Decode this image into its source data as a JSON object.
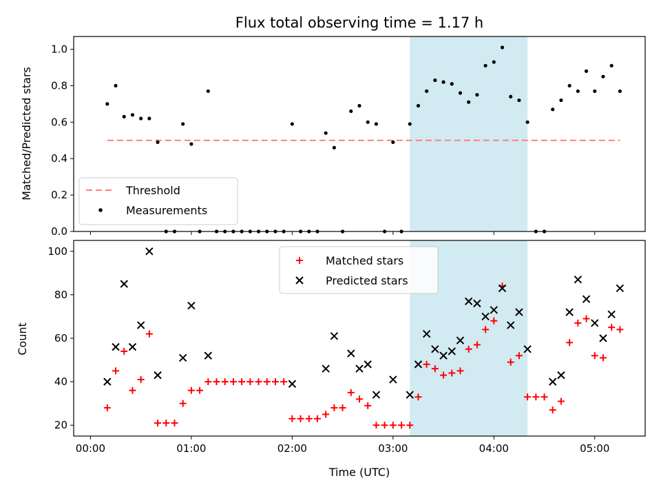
{
  "chart_data": [
    {
      "type": "scatter",
      "title": "Flux total observing time = 1.17 h",
      "ylabel": "Matched/Predicted stars",
      "xlabel": "",
      "x_unit": "minutes after 00:00 UTC",
      "xlim": [
        -10,
        330
      ],
      "ylim": [
        0,
        1.07
      ],
      "yticks": [
        "0.0",
        "0.2",
        "0.4",
        "0.6",
        "0.8",
        "1.0"
      ],
      "highlight_span": [
        190,
        260
      ],
      "threshold": {
        "name": "Threshold",
        "value": 0.5,
        "x_range": [
          10,
          315
        ],
        "color": "#ff7f7f"
      },
      "legend": {
        "position": "lower-left",
        "entries": [
          "Threshold",
          "Measurements"
        ]
      },
      "series": [
        {
          "name": "Measurements",
          "marker": "dot",
          "color": "#000000",
          "points": [
            [
              10,
              0.7
            ],
            [
              15,
              0.8
            ],
            [
              20,
              0.63
            ],
            [
              25,
              0.64
            ],
            [
              30,
              0.62
            ],
            [
              35,
              0.62
            ],
            [
              40,
              0.49
            ],
            [
              45,
              0.0
            ],
            [
              50,
              0.0
            ],
            [
              55,
              0.59
            ],
            [
              60,
              0.48
            ],
            [
              65,
              0.0
            ],
            [
              70,
              0.77
            ],
            [
              75,
              0.0
            ],
            [
              80,
              0.0
            ],
            [
              85,
              0.0
            ],
            [
              90,
              0.0
            ],
            [
              95,
              0.0
            ],
            [
              100,
              0.0
            ],
            [
              105,
              0.0
            ],
            [
              110,
              0.0
            ],
            [
              115,
              0.0
            ],
            [
              120,
              0.59
            ],
            [
              125,
              0.0
            ],
            [
              130,
              0.0
            ],
            [
              135,
              0.0
            ],
            [
              140,
              0.54
            ],
            [
              145,
              0.46
            ],
            [
              150,
              0.0
            ],
            [
              155,
              0.66
            ],
            [
              160,
              0.69
            ],
            [
              165,
              0.6
            ],
            [
              170,
              0.59
            ],
            [
              175,
              0.0
            ],
            [
              180,
              0.49
            ],
            [
              185,
              0.0
            ],
            [
              190,
              0.59
            ],
            [
              195,
              0.69
            ],
            [
              200,
              0.77
            ],
            [
              205,
              0.83
            ],
            [
              210,
              0.82
            ],
            [
              215,
              0.81
            ],
            [
              220,
              0.76
            ],
            [
              225,
              0.71
            ],
            [
              230,
              0.75
            ],
            [
              235,
              0.91
            ],
            [
              240,
              0.93
            ],
            [
              245,
              1.01
            ],
            [
              250,
              0.74
            ],
            [
              255,
              0.72
            ],
            [
              260,
              0.6
            ],
            [
              265,
              0.0
            ],
            [
              270,
              0.0
            ],
            [
              275,
              0.67
            ],
            [
              280,
              0.72
            ],
            [
              285,
              0.8
            ],
            [
              290,
              0.77
            ],
            [
              295,
              0.88
            ],
            [
              300,
              0.77
            ],
            [
              305,
              0.85
            ],
            [
              310,
              0.91
            ],
            [
              315,
              0.77
            ]
          ]
        }
      ]
    },
    {
      "type": "scatter",
      "title": "",
      "ylabel": "Count",
      "xlabel": "Time (UTC)",
      "x_unit": "minutes after 00:00 UTC",
      "xlim": [
        -10,
        330
      ],
      "ylim": [
        15,
        105
      ],
      "yticks": [
        "20",
        "40",
        "60",
        "80",
        "100"
      ],
      "xticks": [
        {
          "value": 0,
          "label": "00:00"
        },
        {
          "value": 60,
          "label": "01:00"
        },
        {
          "value": 120,
          "label": "02:00"
        },
        {
          "value": 180,
          "label": "03:00"
        },
        {
          "value": 240,
          "label": "04:00"
        },
        {
          "value": 300,
          "label": "05:00"
        }
      ],
      "highlight_span": [
        190,
        260
      ],
      "legend": {
        "position": "top-center",
        "entries": [
          "Matched stars",
          "Predicted stars"
        ]
      },
      "series": [
        {
          "name": "Matched stars",
          "marker": "plus",
          "color": "#ff0000",
          "points": [
            [
              10,
              28
            ],
            [
              15,
              45
            ],
            [
              20,
              54
            ],
            [
              25,
              36
            ],
            [
              30,
              41
            ],
            [
              35,
              62
            ],
            [
              40,
              21
            ],
            [
              45,
              21
            ],
            [
              50,
              21
            ],
            [
              55,
              30
            ],
            [
              60,
              36
            ],
            [
              65,
              36
            ],
            [
              70,
              40
            ],
            [
              75,
              40
            ],
            [
              80,
              40
            ],
            [
              85,
              40
            ],
            [
              90,
              40
            ],
            [
              95,
              40
            ],
            [
              100,
              40
            ],
            [
              105,
              40
            ],
            [
              110,
              40
            ],
            [
              115,
              40
            ],
            [
              120,
              23
            ],
            [
              125,
              23
            ],
            [
              130,
              23
            ],
            [
              135,
              23
            ],
            [
              140,
              25
            ],
            [
              145,
              28
            ],
            [
              150,
              28
            ],
            [
              155,
              35
            ],
            [
              160,
              32
            ],
            [
              165,
              29
            ],
            [
              170,
              20
            ],
            [
              175,
              20
            ],
            [
              180,
              20
            ],
            [
              185,
              20
            ],
            [
              190,
              20
            ],
            [
              195,
              33
            ],
            [
              200,
              48
            ],
            [
              205,
              46
            ],
            [
              210,
              43
            ],
            [
              215,
              44
            ],
            [
              220,
              45
            ],
            [
              225,
              55
            ],
            [
              230,
              57
            ],
            [
              235,
              64
            ],
            [
              240,
              68
            ],
            [
              245,
              84
            ],
            [
              250,
              49
            ],
            [
              255,
              52
            ],
            [
              260,
              33
            ],
            [
              265,
              33
            ],
            [
              270,
              33
            ],
            [
              275,
              27
            ],
            [
              280,
              31
            ],
            [
              285,
              58
            ],
            [
              290,
              67
            ],
            [
              295,
              69
            ],
            [
              300,
              52
            ],
            [
              305,
              51
            ],
            [
              310,
              65
            ],
            [
              315,
              64
            ]
          ]
        },
        {
          "name": "Predicted stars",
          "marker": "x",
          "color": "#000000",
          "points": [
            [
              10,
              40
            ],
            [
              15,
              56
            ],
            [
              20,
              85
            ],
            [
              25,
              56
            ],
            [
              30,
              66
            ],
            [
              35,
              100
            ],
            [
              40,
              43
            ],
            [
              55,
              51
            ],
            [
              60,
              75
            ],
            [
              70,
              52
            ],
            [
              120,
              39
            ],
            [
              140,
              46
            ],
            [
              145,
              61
            ],
            [
              155,
              53
            ],
            [
              160,
              46
            ],
            [
              165,
              48
            ],
            [
              170,
              34
            ],
            [
              180,
              41
            ],
            [
              190,
              34
            ],
            [
              195,
              48
            ],
            [
              200,
              62
            ],
            [
              205,
              55
            ],
            [
              210,
              52
            ],
            [
              215,
              54
            ],
            [
              220,
              59
            ],
            [
              225,
              77
            ],
            [
              230,
              76
            ],
            [
              235,
              70
            ],
            [
              240,
              73
            ],
            [
              245,
              83
            ],
            [
              250,
              66
            ],
            [
              255,
              72
            ],
            [
              260,
              55
            ],
            [
              275,
              40
            ],
            [
              280,
              43
            ],
            [
              285,
              72
            ],
            [
              290,
              87
            ],
            [
              295,
              78
            ],
            [
              300,
              67
            ],
            [
              305,
              60
            ],
            [
              310,
              71
            ],
            [
              315,
              83
            ]
          ]
        }
      ]
    }
  ]
}
